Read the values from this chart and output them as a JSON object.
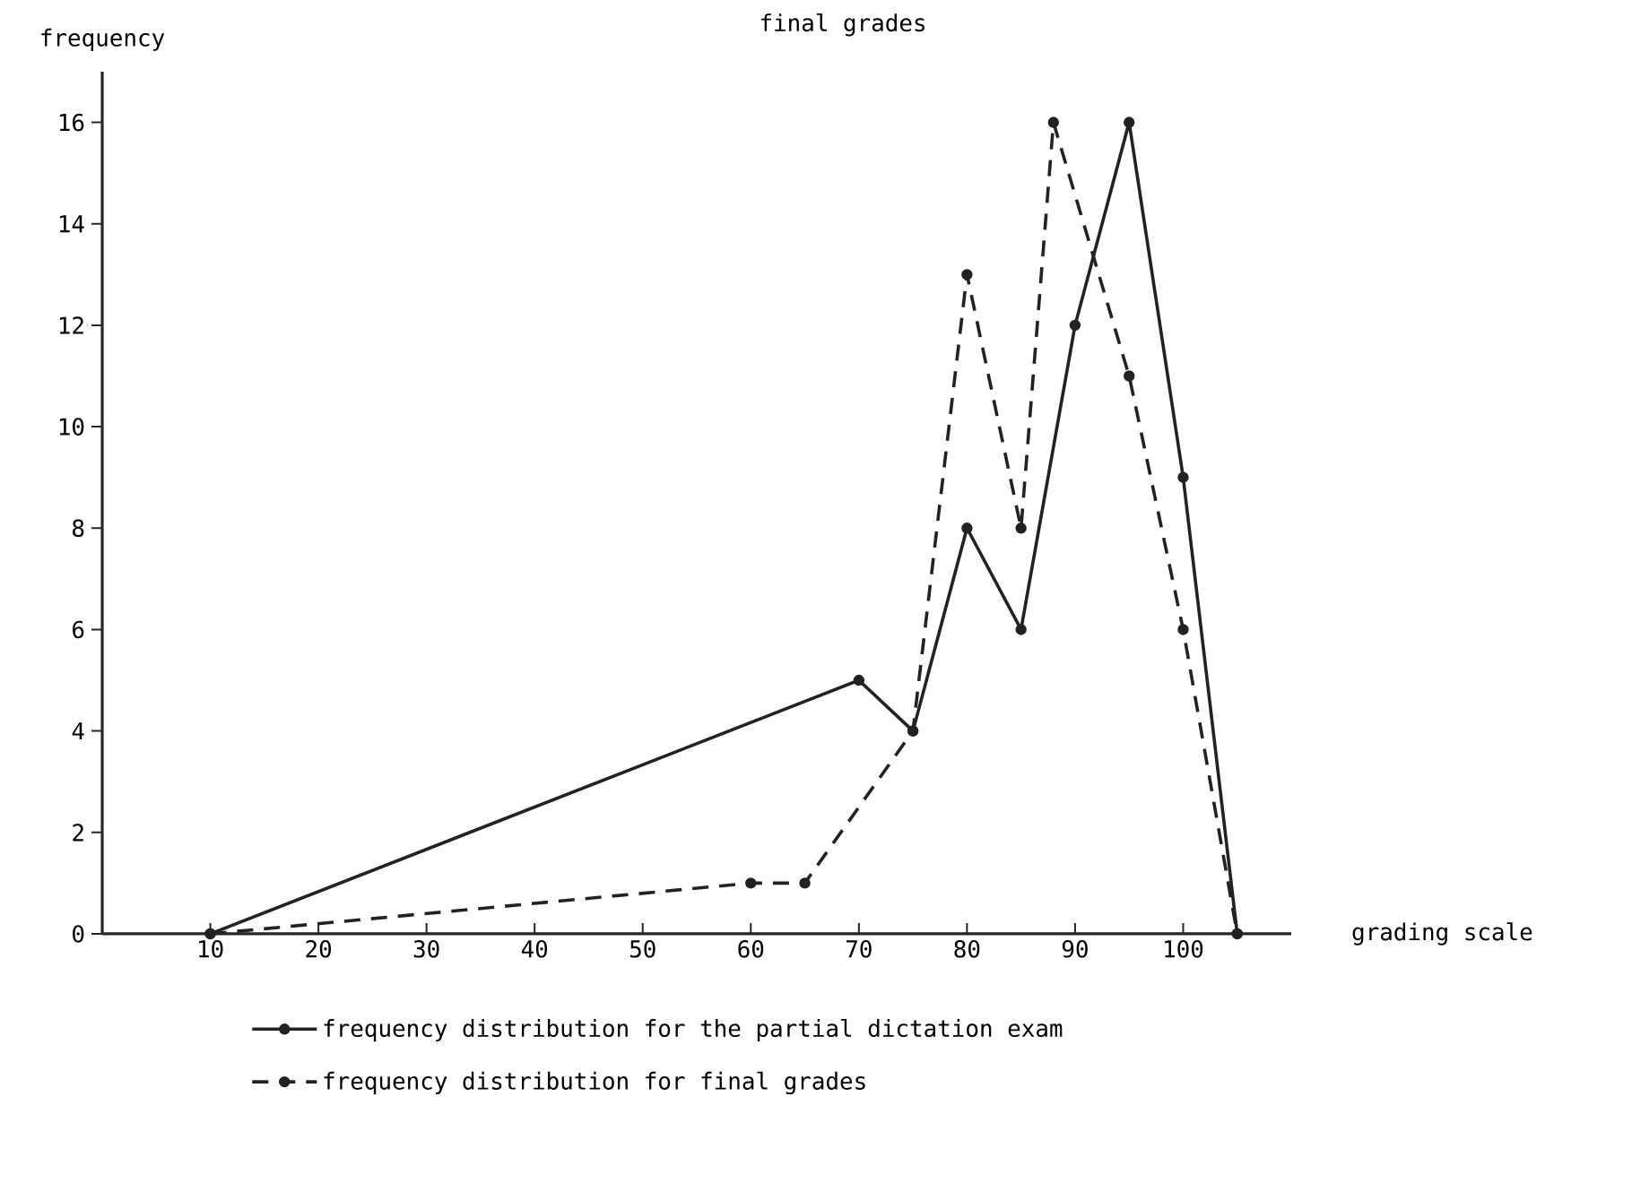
{
  "chart_data": {
    "type": "line",
    "title": "final grades",
    "xlabel": "grading scale",
    "ylabel": "frequency",
    "xlim": [
      0,
      110
    ],
    "ylim": [
      0,
      17
    ],
    "xticks": [
      10,
      20,
      30,
      40,
      50,
      60,
      70,
      80,
      90,
      100
    ],
    "yticks": [
      0,
      2,
      4,
      6,
      8,
      10,
      12,
      14,
      16
    ],
    "legend": "bottom",
    "marker": "circle",
    "grid": false,
    "series": [
      {
        "name": "frequency distribution for the partial dictation exam",
        "color": "#222222",
        "line_style": "solid",
        "x": [
          10,
          70,
          75,
          80,
          85,
          90,
          95,
          100,
          105
        ],
        "values": [
          0,
          5,
          4,
          8,
          6,
          12,
          16,
          9,
          0
        ]
      },
      {
        "name": "frequency distribution for final grades",
        "color": "#222222",
        "line_style": "dashed",
        "x": [
          10,
          60,
          65,
          75,
          80,
          85,
          88,
          95,
          100,
          105
        ],
        "values": [
          0,
          1,
          1,
          4,
          13,
          8,
          16,
          11,
          6,
          0
        ]
      }
    ]
  }
}
